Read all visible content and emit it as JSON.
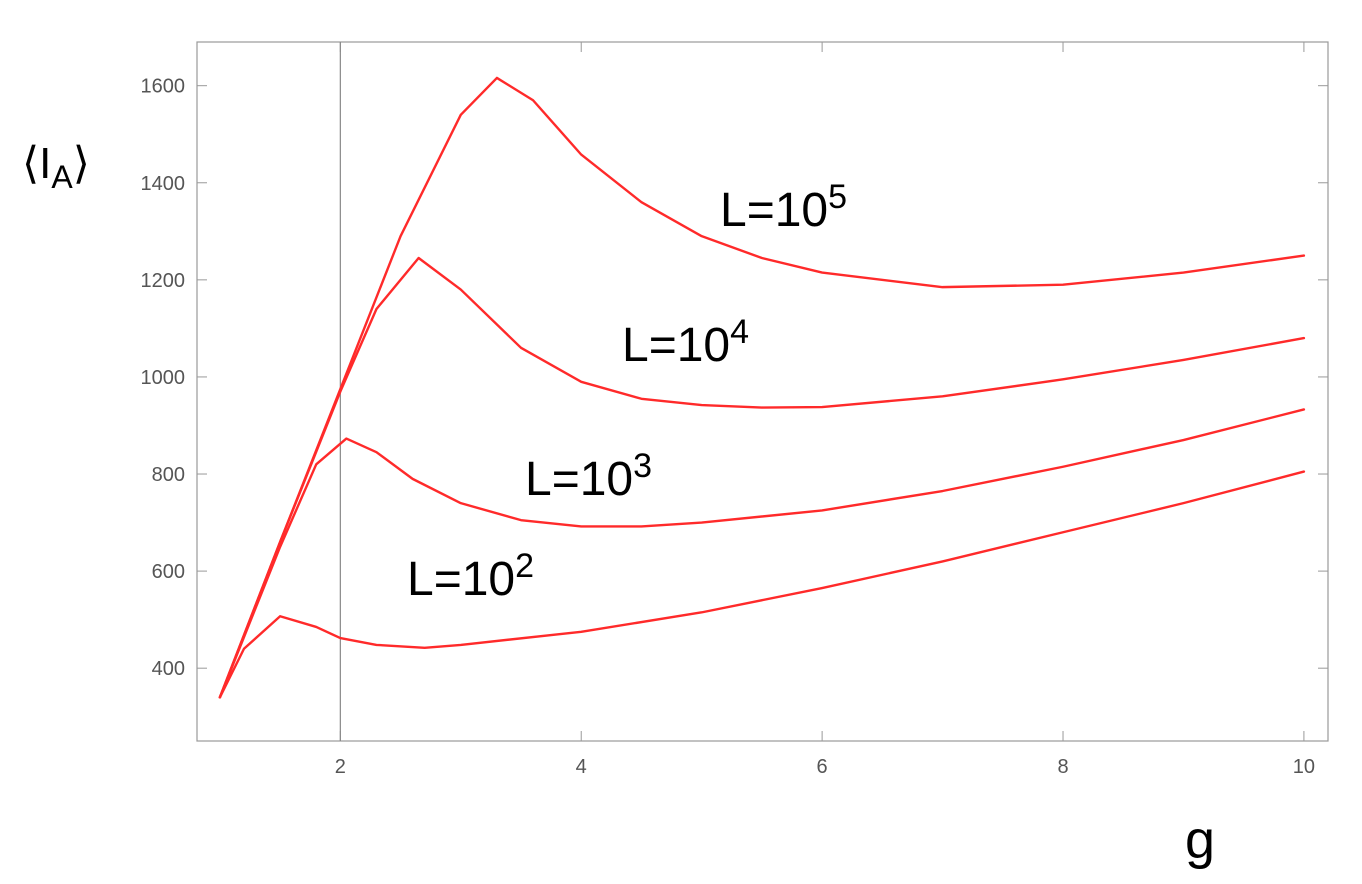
{
  "chart_data": {
    "type": "line",
    "xlabel": "g",
    "ylabel": {
      "main": "⟨I",
      "sub": "A",
      "close": "⟩"
    },
    "xlim": [
      0.81,
      10.2
    ],
    "ylim": [
      250,
      1690
    ],
    "xticks": [
      2,
      4,
      6,
      8,
      10
    ],
    "yticks": [
      400,
      600,
      800,
      1000,
      1200,
      1400,
      1600
    ],
    "vline": 2,
    "series": [
      {
        "name": "L=10^5",
        "color": "#ff2a2a",
        "x": [
          1,
          1.5,
          2,
          2.5,
          3,
          3.3,
          3.6,
          4,
          4.5,
          5,
          5.5,
          6,
          7,
          8,
          9,
          10
        ],
        "values": [
          340,
          660,
          975,
          1290,
          1540,
          1616,
          1570,
          1458,
          1360,
          1290,
          1245,
          1215,
          1185,
          1190,
          1215,
          1250
        ]
      },
      {
        "name": "L=10^4",
        "color": "#ff2a2a",
        "x": [
          1,
          1.5,
          2,
          2.3,
          2.65,
          3,
          3.5,
          4,
          4.5,
          5,
          5.5,
          6,
          7,
          8,
          9,
          10
        ],
        "values": [
          340,
          660,
          970,
          1140,
          1245,
          1180,
          1060,
          990,
          955,
          942,
          937,
          938,
          960,
          995,
          1035,
          1080
        ]
      },
      {
        "name": "L=10^3",
        "color": "#ff2a2a",
        "x": [
          1,
          1.5,
          1.8,
          2.05,
          2.3,
          2.6,
          3,
          3.5,
          4,
          4.5,
          5,
          6,
          7,
          8,
          9,
          10
        ],
        "values": [
          340,
          650,
          820,
          873,
          845,
          790,
          740,
          705,
          692,
          692,
          700,
          725,
          765,
          815,
          870,
          933
        ]
      },
      {
        "name": "L=10^2",
        "color": "#ff2a2a",
        "x": [
          1,
          1.2,
          1.5,
          1.8,
          2,
          2.3,
          2.7,
          3,
          4,
          5,
          6,
          7,
          8,
          9,
          10
        ],
        "values": [
          340,
          440,
          507,
          485,
          462,
          448,
          442,
          448,
          475,
          515,
          565,
          620,
          680,
          740,
          805
        ]
      }
    ],
    "annotations": [
      {
        "base": "L=10",
        "sup": "5"
      },
      {
        "base": "L=10",
        "sup": "4"
      },
      {
        "base": "L=10",
        "sup": "3"
      },
      {
        "base": "L=10",
        "sup": "2"
      }
    ]
  }
}
